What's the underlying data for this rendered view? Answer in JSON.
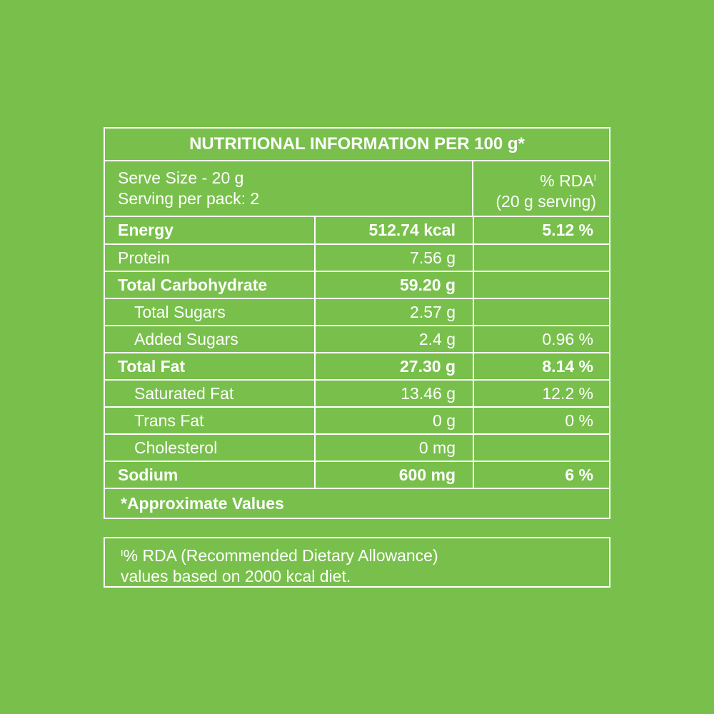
{
  "table": {
    "title": "NUTRITIONAL INFORMATION PER 100 g*",
    "serve_size": "Serve Size - 20 g",
    "serving_per_pack": "Serving per pack: 2",
    "rda_header": "% RDA",
    "rda_header_mark": "I",
    "rda_serving": "(20 g serving)",
    "rows": [
      {
        "name": "Energy",
        "amount": "512.74 kcal",
        "rda": "5.12 %",
        "bold": true
      },
      {
        "name": "Protein",
        "amount": "7.56 g",
        "rda": ""
      },
      {
        "name": "Total Carbohydrate",
        "amount": "59.20 g",
        "rda": "",
        "bold": true
      },
      {
        "name": "Total Sugars",
        "amount": "2.57 g",
        "rda": "",
        "sub": true
      },
      {
        "name": "Added Sugars",
        "amount": "2.4 g",
        "rda": "0.96 %",
        "sub": true
      },
      {
        "name": "Total Fat",
        "amount": "27.30 g",
        "rda": "8.14 %",
        "bold": true
      },
      {
        "name": "Saturated Fat",
        "amount": "13.46 g",
        "rda": "12.2 %",
        "sub": true
      },
      {
        "name": "Trans Fat",
        "amount": "0 g",
        "rda": "0 %",
        "sub": true
      },
      {
        "name": "Cholesterol",
        "amount": "0 mg",
        "rda": "",
        "sub": true
      },
      {
        "name": "Sodium",
        "amount": "600 mg",
        "rda": "6 %",
        "bold": true
      }
    ],
    "approx_note": "*Approximate Values"
  },
  "footnote": {
    "mark": "I",
    "line1": "% RDA (Recommended Dietary Allowance)",
    "line2": "values based on 2000 kcal diet."
  },
  "colors": {
    "background": "#78c04b",
    "text_and_lines": "#ffffff"
  }
}
